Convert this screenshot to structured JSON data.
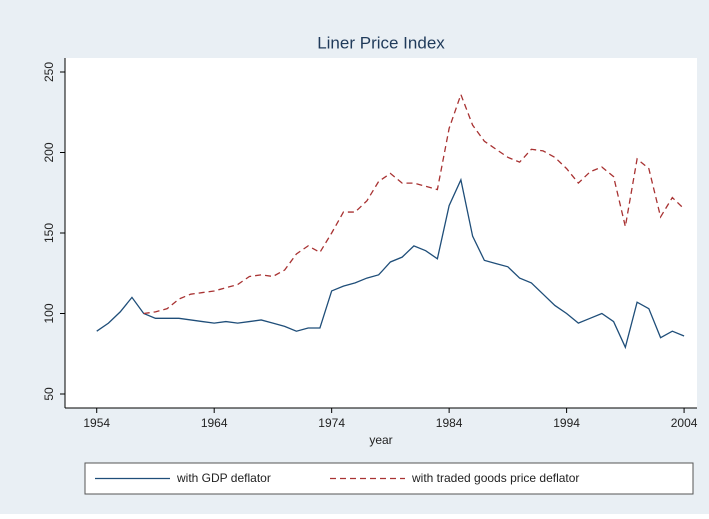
{
  "chart_data": {
    "type": "line",
    "title": "Liner Price Index",
    "xlabel": "year",
    "x": [
      1954,
      1955,
      1956,
      1957,
      1958,
      1959,
      1960,
      1961,
      1962,
      1963,
      1964,
      1965,
      1966,
      1967,
      1968,
      1969,
      1970,
      1971,
      1972,
      1973,
      1974,
      1975,
      1976,
      1977,
      1978,
      1979,
      1980,
      1981,
      1982,
      1983,
      1984,
      1985,
      1986,
      1987,
      1988,
      1989,
      1990,
      1991,
      1992,
      1993,
      1994,
      1995,
      1996,
      1997,
      1998,
      1999,
      2000,
      2001,
      2002,
      2003,
      2004
    ],
    "series": [
      {
        "name": "with GDP deflator",
        "color": "#1f4e79",
        "dash": "solid",
        "values": [
          89,
          94,
          101,
          110,
          100,
          97,
          97,
          97,
          96,
          95,
          94,
          95,
          94,
          95,
          96,
          94,
          92,
          89,
          91,
          91,
          114,
          117,
          119,
          122,
          124,
          132,
          135,
          142,
          139,
          134,
          167,
          183,
          148,
          133,
          131,
          129,
          122,
          119,
          112,
          105,
          100,
          94,
          97,
          100,
          95,
          79,
          107,
          103,
          85,
          89,
          86
        ]
      },
      {
        "name": "with traded goods price deflator",
        "color": "#a83232",
        "dash": "dashed",
        "values": [
          null,
          null,
          null,
          null,
          100,
          101,
          103,
          109,
          112,
          113,
          114,
          116,
          118,
          123,
          124,
          123,
          127,
          137,
          142,
          138,
          150,
          163,
          163,
          170,
          182,
          187,
          181,
          181,
          179,
          177,
          215,
          236,
          217,
          207,
          202,
          197,
          194,
          202,
          201,
          197,
          190,
          181,
          188,
          191,
          185,
          154,
          196,
          190,
          160,
          172,
          165
        ]
      }
    ],
    "xlim": [
      1951.3,
      2005.1
    ],
    "xticks": [
      1954,
      1964,
      1974,
      1984,
      1994,
      2004
    ],
    "ylim": [
      41.3,
      258.7
    ],
    "yticks": [
      50,
      100,
      150,
      200,
      250
    ],
    "grid": false,
    "legend": "bottom"
  }
}
